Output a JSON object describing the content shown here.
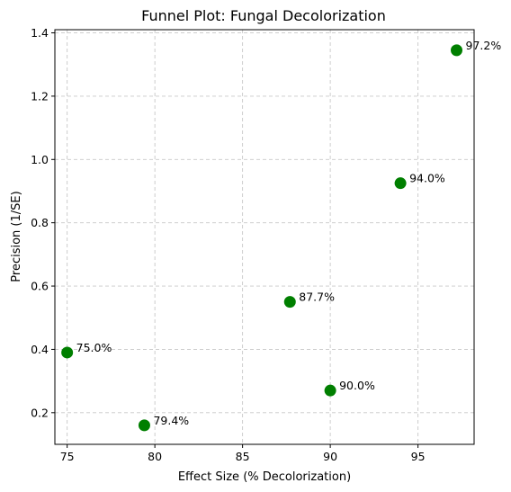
{
  "chart_data": {
    "type": "scatter",
    "title": "Funnel Plot: Fungal Decolorization",
    "xlabel": "Effect Size (% Decolorization)",
    "ylabel": "Precision (1/SE)",
    "xlim": [
      74.3,
      98.2
    ],
    "ylim": [
      0.1,
      1.41
    ],
    "xticks": [
      75,
      80,
      85,
      90,
      95
    ],
    "yticks": [
      0.2,
      0.4,
      0.6,
      0.8,
      1.0,
      1.2,
      1.4
    ],
    "xtick_labels": [
      "75",
      "80",
      "85",
      "90",
      "95"
    ],
    "ytick_labels": [
      "0.2",
      "0.4",
      "0.6",
      "0.8",
      "1.0",
      "1.2",
      "1.4"
    ],
    "grid": true,
    "marker_color": "#007f00",
    "points": [
      {
        "x": 75.0,
        "y": 0.39,
        "label": "75.0%"
      },
      {
        "x": 79.4,
        "y": 0.16,
        "label": "79.4%"
      },
      {
        "x": 87.7,
        "y": 0.55,
        "label": "87.7%"
      },
      {
        "x": 90.0,
        "y": 0.27,
        "label": "90.0%"
      },
      {
        "x": 94.0,
        "y": 0.925,
        "label": "94.0%"
      },
      {
        "x": 97.2,
        "y": 1.345,
        "label": "97.2%"
      }
    ]
  }
}
